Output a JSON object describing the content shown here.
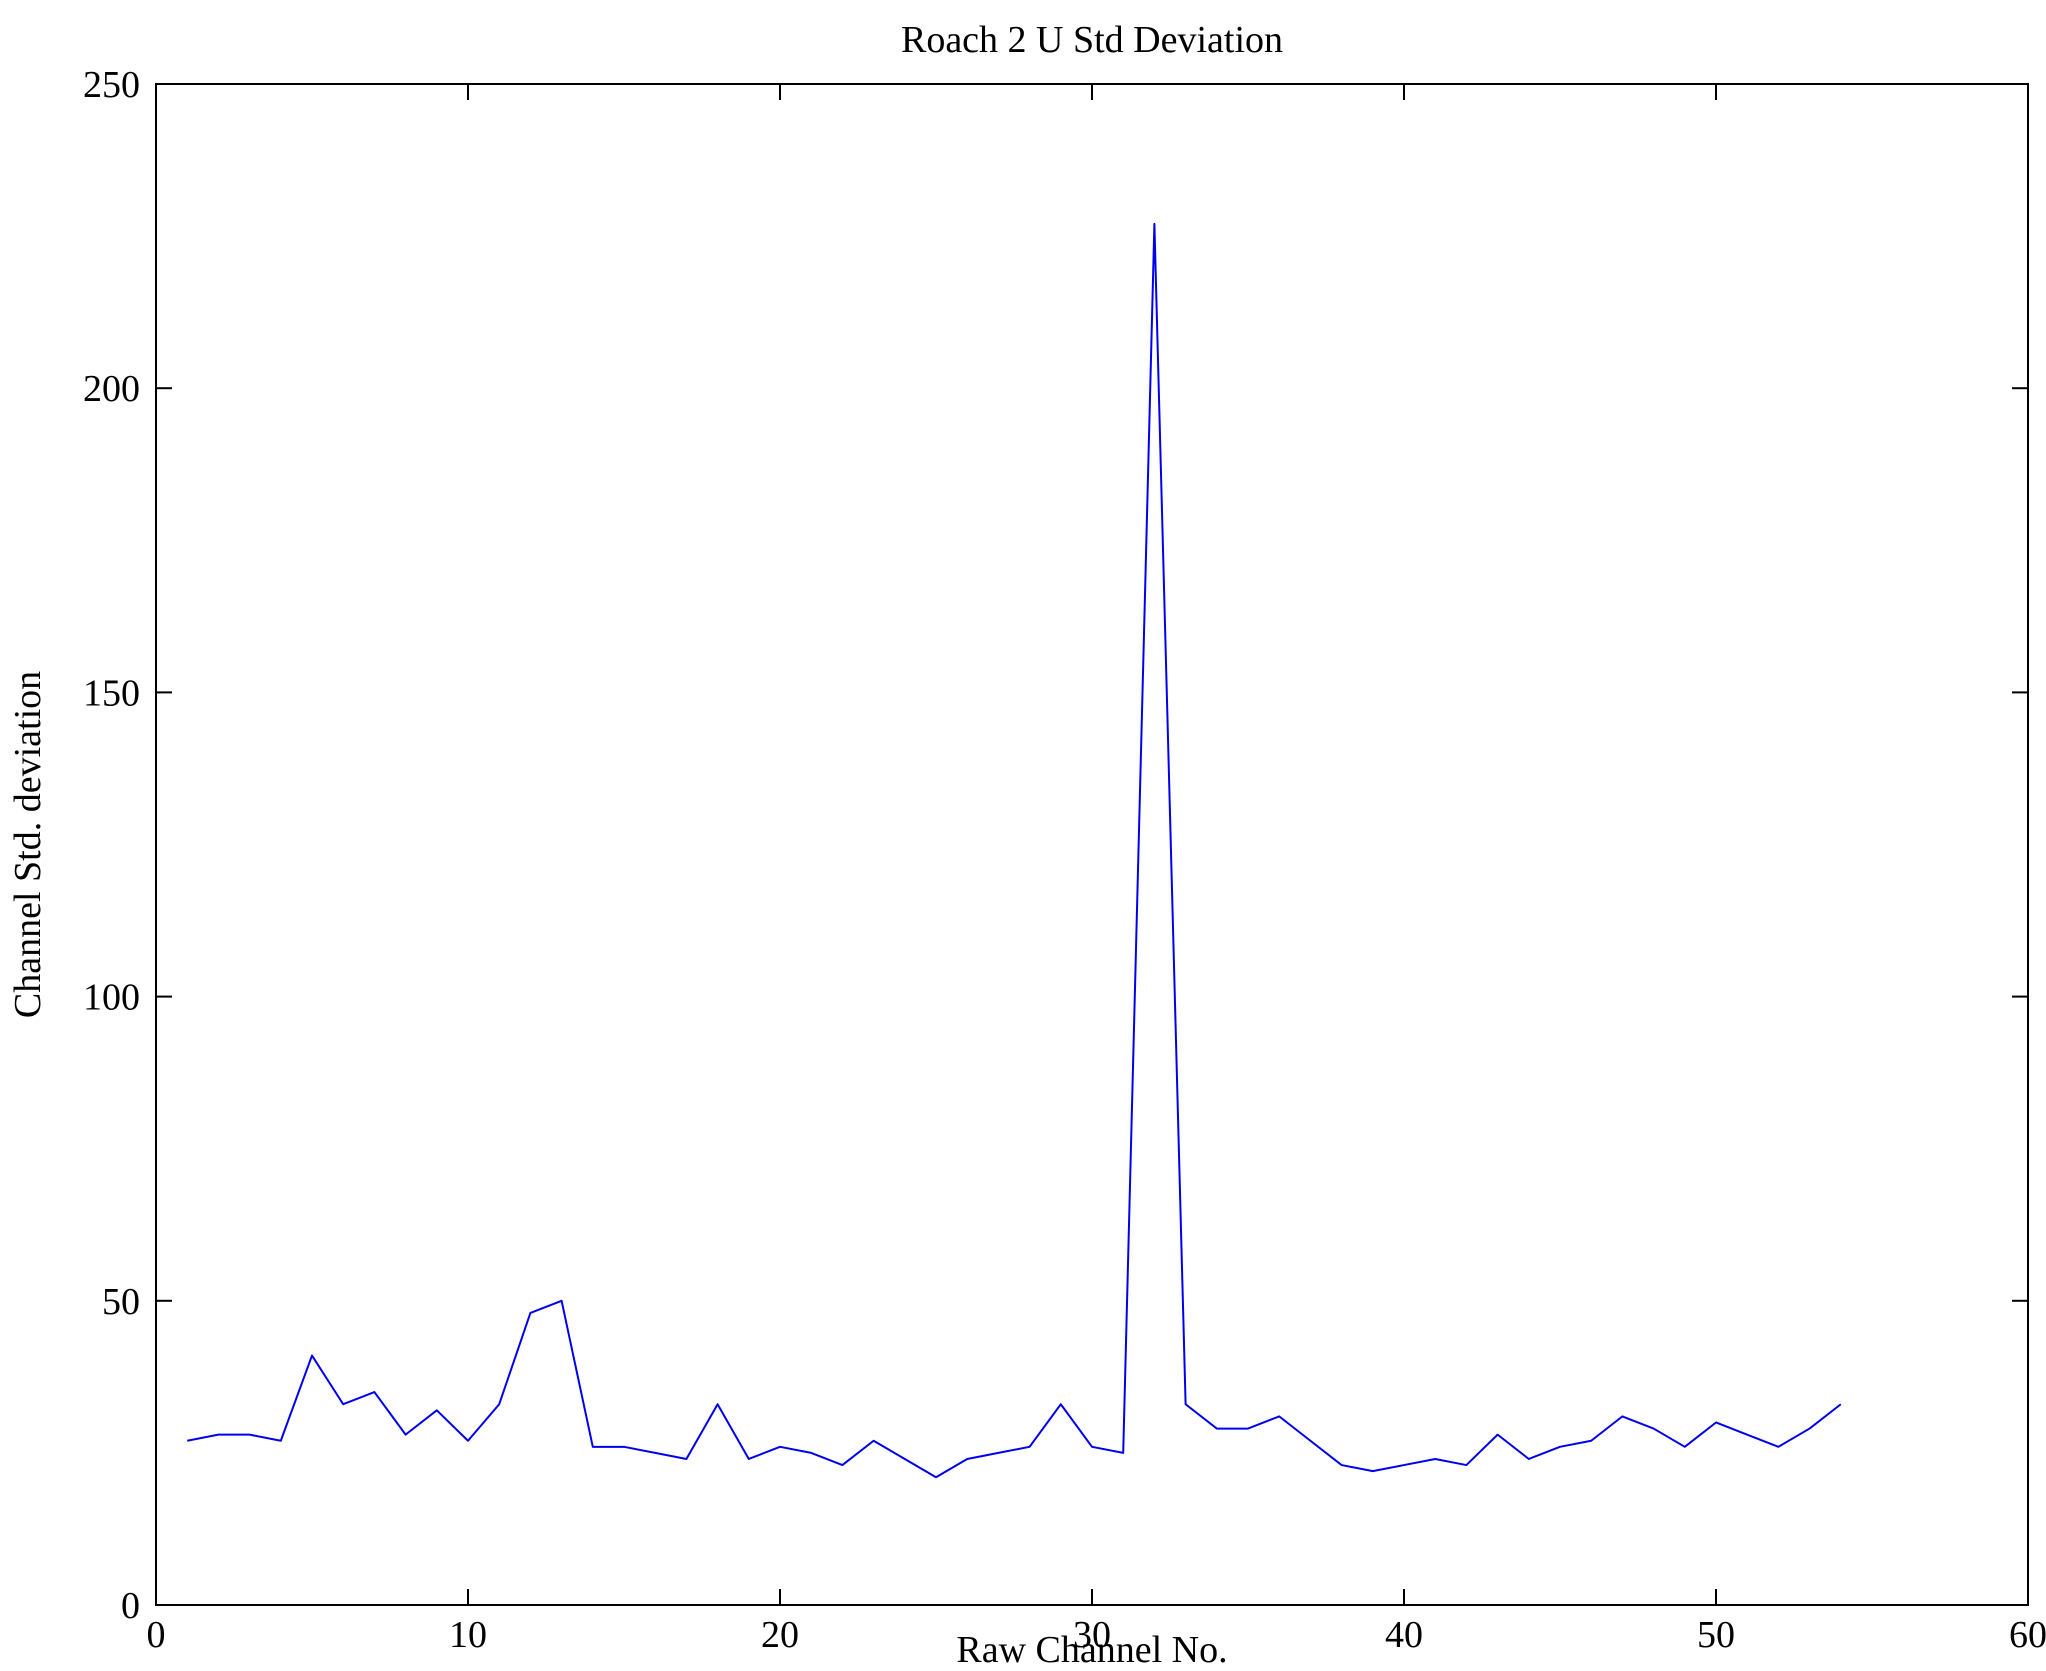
{
  "chart_data": {
    "type": "line",
    "title": "Roach 2 U Std Deviation",
    "xlabel": "Raw Channel No.",
    "ylabel": "Channel Std. deviation",
    "xlim": [
      0,
      60
    ],
    "ylim": [
      0,
      250
    ],
    "xticks": [
      0,
      10,
      20,
      30,
      40,
      50,
      60
    ],
    "yticks": [
      0,
      50,
      100,
      150,
      200,
      250
    ],
    "grid": false,
    "legend": "none",
    "background_color": "#ffffff",
    "axis_color": "#000000",
    "line_color": "#0000ee",
    "series": [
      {
        "name": "Channel Std deviation",
        "x": [
          1,
          2,
          3,
          4,
          5,
          6,
          7,
          8,
          9,
          10,
          11,
          12,
          13,
          14,
          15,
          16,
          17,
          18,
          19,
          20,
          21,
          22,
          23,
          24,
          25,
          26,
          27,
          28,
          29,
          30,
          31,
          32,
          33,
          34,
          35,
          36,
          37,
          38,
          39,
          40,
          41,
          42,
          43,
          44,
          45,
          46,
          47,
          48,
          49,
          50,
          51,
          52,
          53,
          54
        ],
        "y": [
          27,
          28,
          28,
          27,
          41,
          33,
          35,
          28,
          32,
          27,
          33,
          48,
          50,
          26,
          26,
          25,
          24,
          33,
          24,
          26,
          25,
          23,
          27,
          24,
          21,
          24,
          25,
          26,
          33,
          26,
          25,
          227,
          33,
          29,
          29,
          31,
          27,
          23,
          22,
          23,
          24,
          23,
          28,
          24,
          26,
          27,
          31,
          29,
          26,
          30,
          28,
          26,
          29,
          33
        ]
      }
    ]
  }
}
